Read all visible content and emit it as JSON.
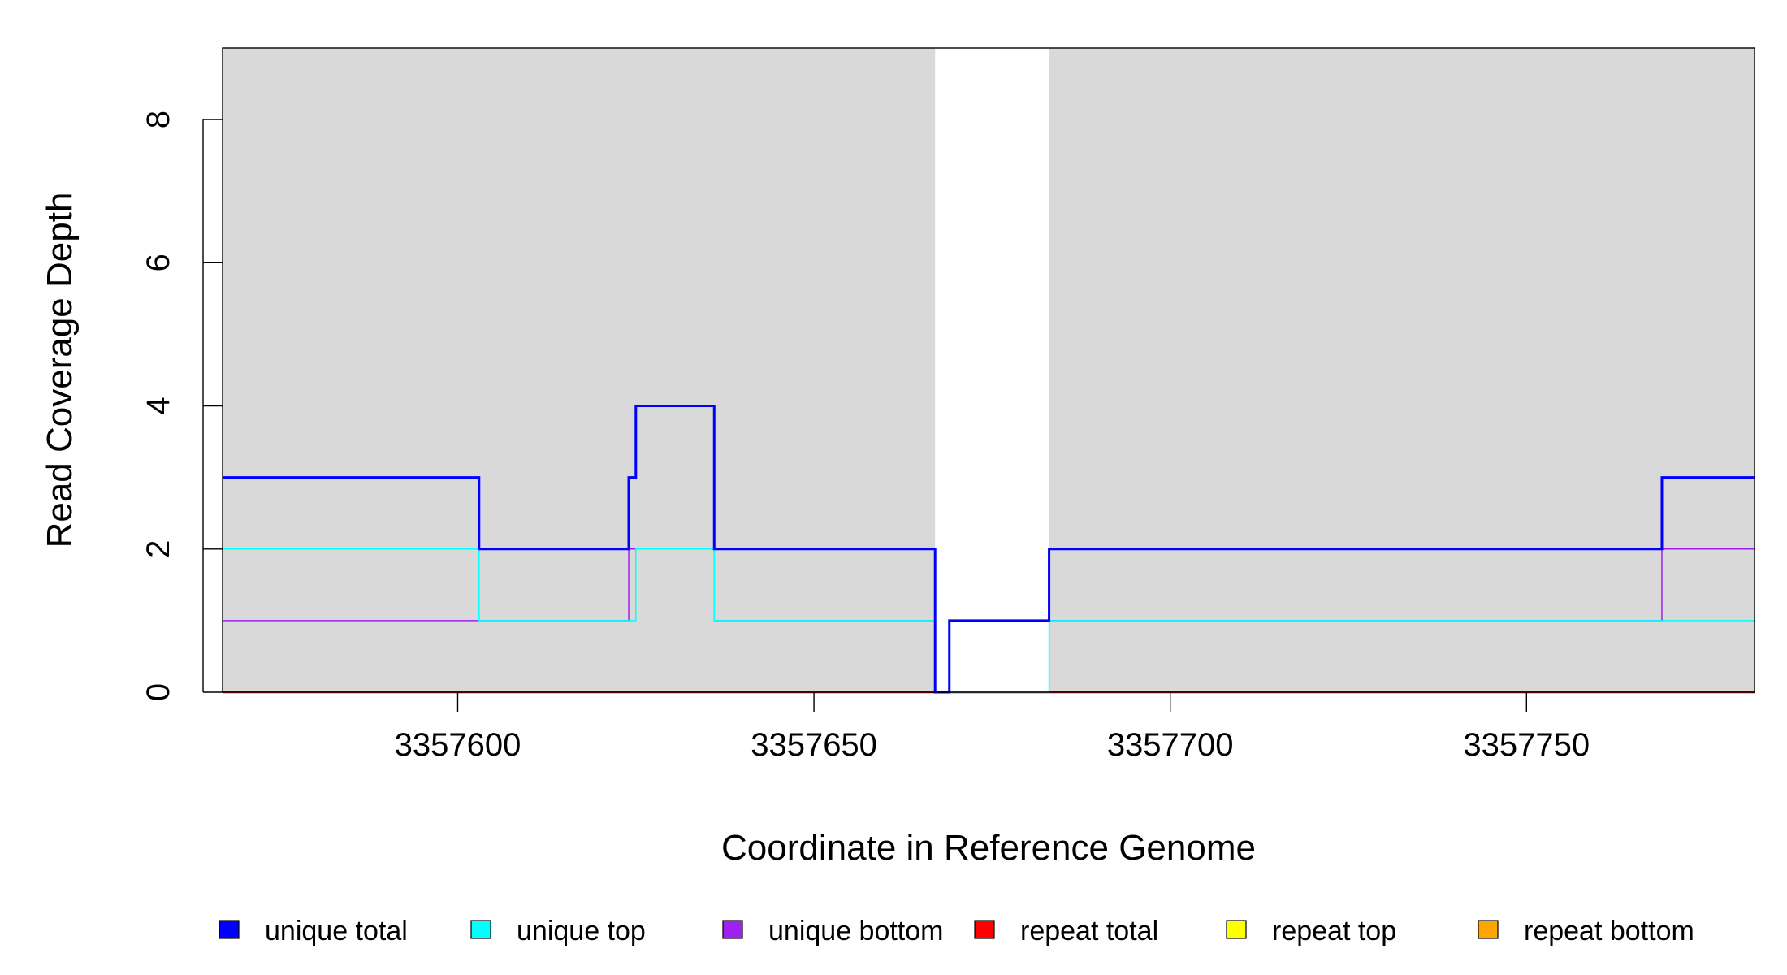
{
  "chart_data": {
    "type": "line",
    "title": "",
    "xlabel": "Coordinate in Reference Genome",
    "ylabel": "Read Coverage Depth",
    "xlim": [
      3357567,
      3357782
    ],
    "ylim": [
      0,
      9
    ],
    "x_ticks": [
      3357600,
      3357650,
      3357700,
      3357750
    ],
    "y_ticks": [
      0,
      2,
      4,
      6,
      8
    ],
    "background_color": "#d9d9d9",
    "background_gaps": [
      [
        3357667,
        3357683
      ]
    ],
    "grid": false,
    "legend_position": "bottom",
    "series": [
      {
        "name": "unique total",
        "color": "#0000ff",
        "x": [
          3357567,
          3357603,
          3357624,
          3357625,
          3357636,
          3357667,
          3357669,
          3357683,
          3357769,
          3357782
        ],
        "values": [
          3,
          2,
          3,
          4,
          2,
          0,
          1,
          2,
          3,
          3
        ]
      },
      {
        "name": "unique top",
        "color": "#00ffff",
        "x": [
          3357567,
          3357603,
          3357625,
          3357636,
          3357667,
          3357683,
          3357769,
          3357782
        ],
        "values": [
          2,
          1,
          2,
          1,
          0,
          1,
          1,
          1
        ]
      },
      {
        "name": "unique bottom",
        "color": "#a020f0",
        "x": [
          3357567,
          3357624,
          3357636,
          3357667,
          3357669,
          3357683,
          3357769,
          3357782
        ],
        "values": [
          1,
          2,
          1,
          0,
          1,
          1,
          2,
          2
        ]
      },
      {
        "name": "repeat total",
        "color": "#ff0000",
        "x": [
          3357567,
          3357782
        ],
        "values": [
          0,
          0
        ]
      },
      {
        "name": "repeat top",
        "color": "#ffff00",
        "x": [
          3357567,
          3357782
        ],
        "values": [
          0,
          0
        ]
      },
      {
        "name": "repeat bottom",
        "color": "#ffa500",
        "x": [
          3357567,
          3357782
        ],
        "values": [
          0,
          0
        ]
      }
    ]
  }
}
